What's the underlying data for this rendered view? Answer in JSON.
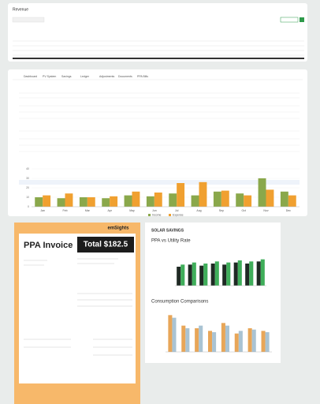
{
  "top_panel": {
    "title": "Revenue"
  },
  "dashboard": {
    "tabs": [
      "Dashboard",
      "PV System",
      "Savings",
      "Ledger",
      "Adjustments",
      "Documents",
      "PPA Bills"
    ],
    "chart": {
      "type": "bar",
      "categories": [
        "Jan",
        "Feb",
        "Mar",
        "Apr",
        "May",
        "Jun",
        "Jul",
        "Aug",
        "Sep",
        "Oct",
        "Nov",
        "Dec"
      ],
      "series": [
        {
          "name": "Income",
          "color": "#8aa84b",
          "values": [
            10,
            9,
            10,
            9,
            12,
            11,
            14,
            12,
            16,
            14,
            30,
            16
          ]
        },
        {
          "name": "Expense",
          "color": "#f0a030",
          "values": [
            12,
            14,
            10,
            11,
            16,
            15,
            25,
            26,
            17,
            12,
            18,
            12
          ]
        }
      ],
      "ylim": [
        0,
        40
      ],
      "yticks": [
        0,
        10,
        20,
        30,
        40
      ]
    }
  },
  "invoice": {
    "title": "PPA Invoice",
    "total": "Total $182.5",
    "brand": "emSights"
  },
  "savings": {
    "heading": "SOLAR SAVINGS",
    "rate_chart": {
      "title": "PPA vs Utility Rate",
      "series": [
        {
          "color": "#1f2a24",
          "values": [
            18,
            20,
            19,
            21,
            20,
            22,
            21,
            23
          ]
        },
        {
          "color": "#3fae5a",
          "values": [
            20,
            22,
            21,
            23,
            22,
            24,
            23,
            25
          ]
        }
      ],
      "ylim": [
        0,
        30
      ]
    },
    "consumption_chart": {
      "title": "Consumption Comparisons",
      "series": [
        {
          "color": "#e8a658",
          "values": [
            28,
            20,
            18,
            16,
            22,
            14,
            18,
            16
          ]
        },
        {
          "color": "#a9c3d3",
          "values": [
            26,
            18,
            20,
            15,
            20,
            16,
            17,
            15
          ]
        }
      ],
      "ylim": [
        0,
        30
      ]
    }
  }
}
